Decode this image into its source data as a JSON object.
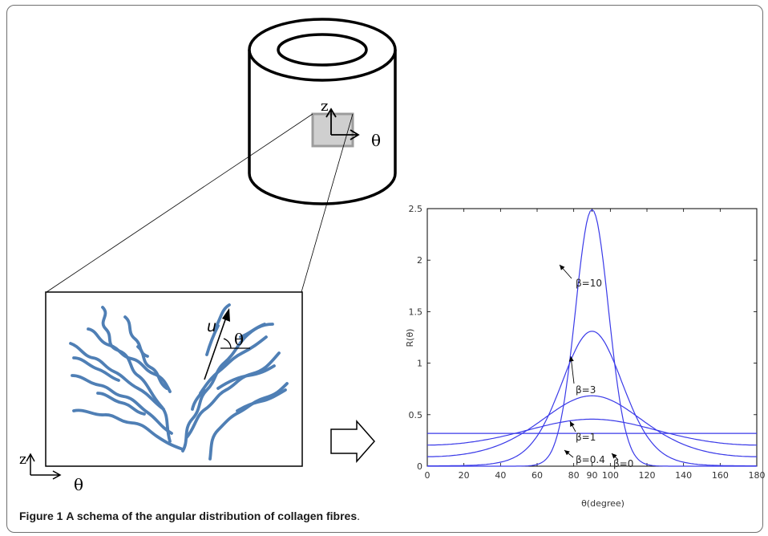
{
  "figure": {
    "label": "Figure 1",
    "title": "A schema of the angular distribution of collagen fibres",
    "end_punct": "."
  },
  "cylinder": {
    "axis_z": "z",
    "axis_theta": "θ"
  },
  "fibre_panel": {
    "vector_label": "u",
    "angle_label": "θ",
    "axis_z": "z",
    "axis_theta": "θ"
  },
  "colors": {
    "fibre": "#4f7fb5",
    "curve": "#3a3ae8",
    "patch_fill": "#cfcfcf",
    "patch_edge": "#9c9c9c"
  },
  "chart_data": {
    "type": "line",
    "xlabel": "θ(degree)",
    "ylabel": "R(θ)",
    "xlim": [
      0,
      180
    ],
    "ylim": [
      0,
      2.5
    ],
    "xticks": [
      0,
      20,
      40,
      60,
      80,
      90,
      100,
      120,
      140,
      160,
      180
    ],
    "xtick_labels": [
      "0",
      "20",
      "40",
      "60",
      "80",
      "90",
      "100",
      "120",
      "140",
      "160",
      "180"
    ],
    "yticks": [
      0,
      0.5,
      1,
      1.5,
      2,
      2.5
    ],
    "ytick_labels": [
      "0",
      "0.5",
      "1",
      "1.5",
      "2",
      "2.5"
    ],
    "grid": false,
    "series": [
      {
        "name": "β=10",
        "beta": 10
      },
      {
        "name": "β=3",
        "beta": 3
      },
      {
        "name": "β=1",
        "beta": 1
      },
      {
        "name": "β=0.4",
        "beta": 0.4
      },
      {
        "name": "β=0",
        "beta": 0
      }
    ],
    "annotations": [
      "β=10",
      "β=3",
      "β=1",
      "β=0.4",
      "β=0"
    ]
  }
}
